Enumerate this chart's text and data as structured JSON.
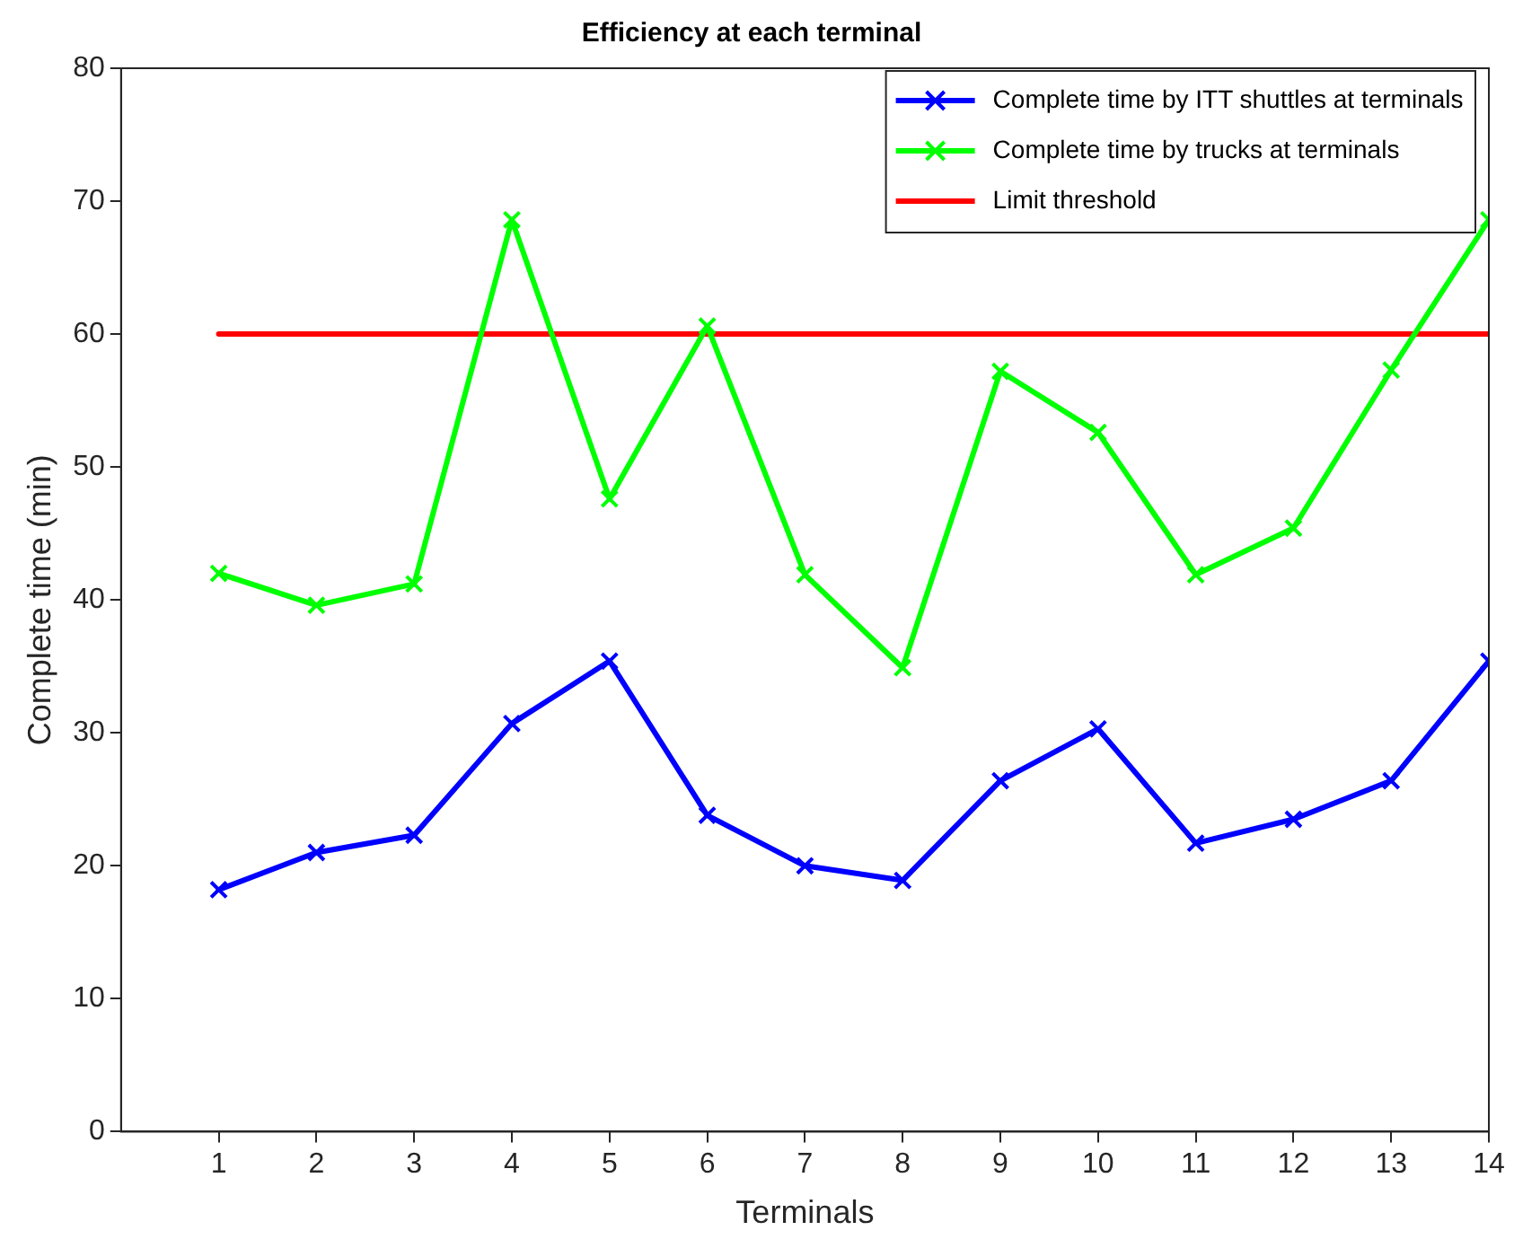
{
  "chart_data": {
    "type": "line",
    "title": "Efficiency at each terminal",
    "xlabel": "Terminals",
    "ylabel": "Complete time (min)",
    "x": [
      1,
      2,
      3,
      4,
      5,
      6,
      7,
      8,
      9,
      10,
      11,
      12,
      13,
      14
    ],
    "series": [
      {
        "name": "Complete time by ITT shuttles at terminals",
        "color": "#0000ff",
        "values": [
          18.2,
          21,
          22.3,
          30.7,
          35.4,
          23.8,
          20,
          18.9,
          26.4,
          30.3,
          21.7,
          23.5,
          26.4,
          35.4
        ]
      },
      {
        "name": "Complete time by trucks at terminals",
        "color": "#00ff00",
        "values": [
          42,
          39.6,
          41.2,
          68.6,
          47.6,
          60.6,
          41.9,
          34.9,
          57.2,
          52.6,
          41.9,
          45.4,
          57.3,
          68.6
        ]
      },
      {
        "name": "Limit threshold",
        "color": "#ff0000",
        "x": [
          1,
          14
        ],
        "values": [
          60,
          60
        ],
        "marker": "none"
      }
    ],
    "xlim": [
      0,
      14
    ],
    "xticks": [
      1,
      2,
      3,
      4,
      5,
      6,
      7,
      8,
      9,
      10,
      11,
      12,
      13,
      14
    ],
    "ylim": [
      0,
      80
    ],
    "yticks": [
      0,
      10,
      20,
      30,
      40,
      50,
      60,
      70,
      80
    ],
    "grid": false,
    "legend": "top right",
    "marker": "cross",
    "line_style": "solid"
  }
}
